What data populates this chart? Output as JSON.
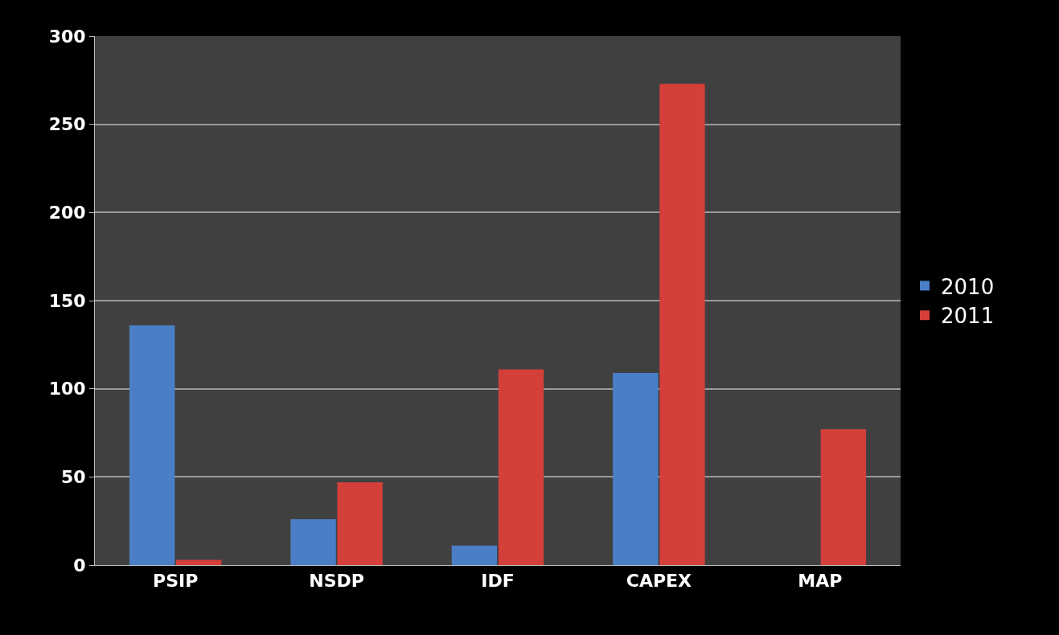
{
  "chart_data": {
    "type": "bar",
    "categories": [
      "PSIP",
      "NSDP",
      "IDF",
      "CAPEX",
      "MAP"
    ],
    "series": [
      {
        "name": "2010",
        "color": "#4a7fc8",
        "values": [
          136,
          26,
          11,
          109,
          null
        ]
      },
      {
        "name": "2011",
        "color": "#d43f3a",
        "values": [
          3,
          47,
          111,
          273,
          77
        ]
      }
    ],
    "ylim": [
      0,
      300
    ],
    "yticks": [
      0,
      50,
      100,
      150,
      200,
      250,
      300
    ],
    "grid": "y",
    "legend": "right"
  }
}
